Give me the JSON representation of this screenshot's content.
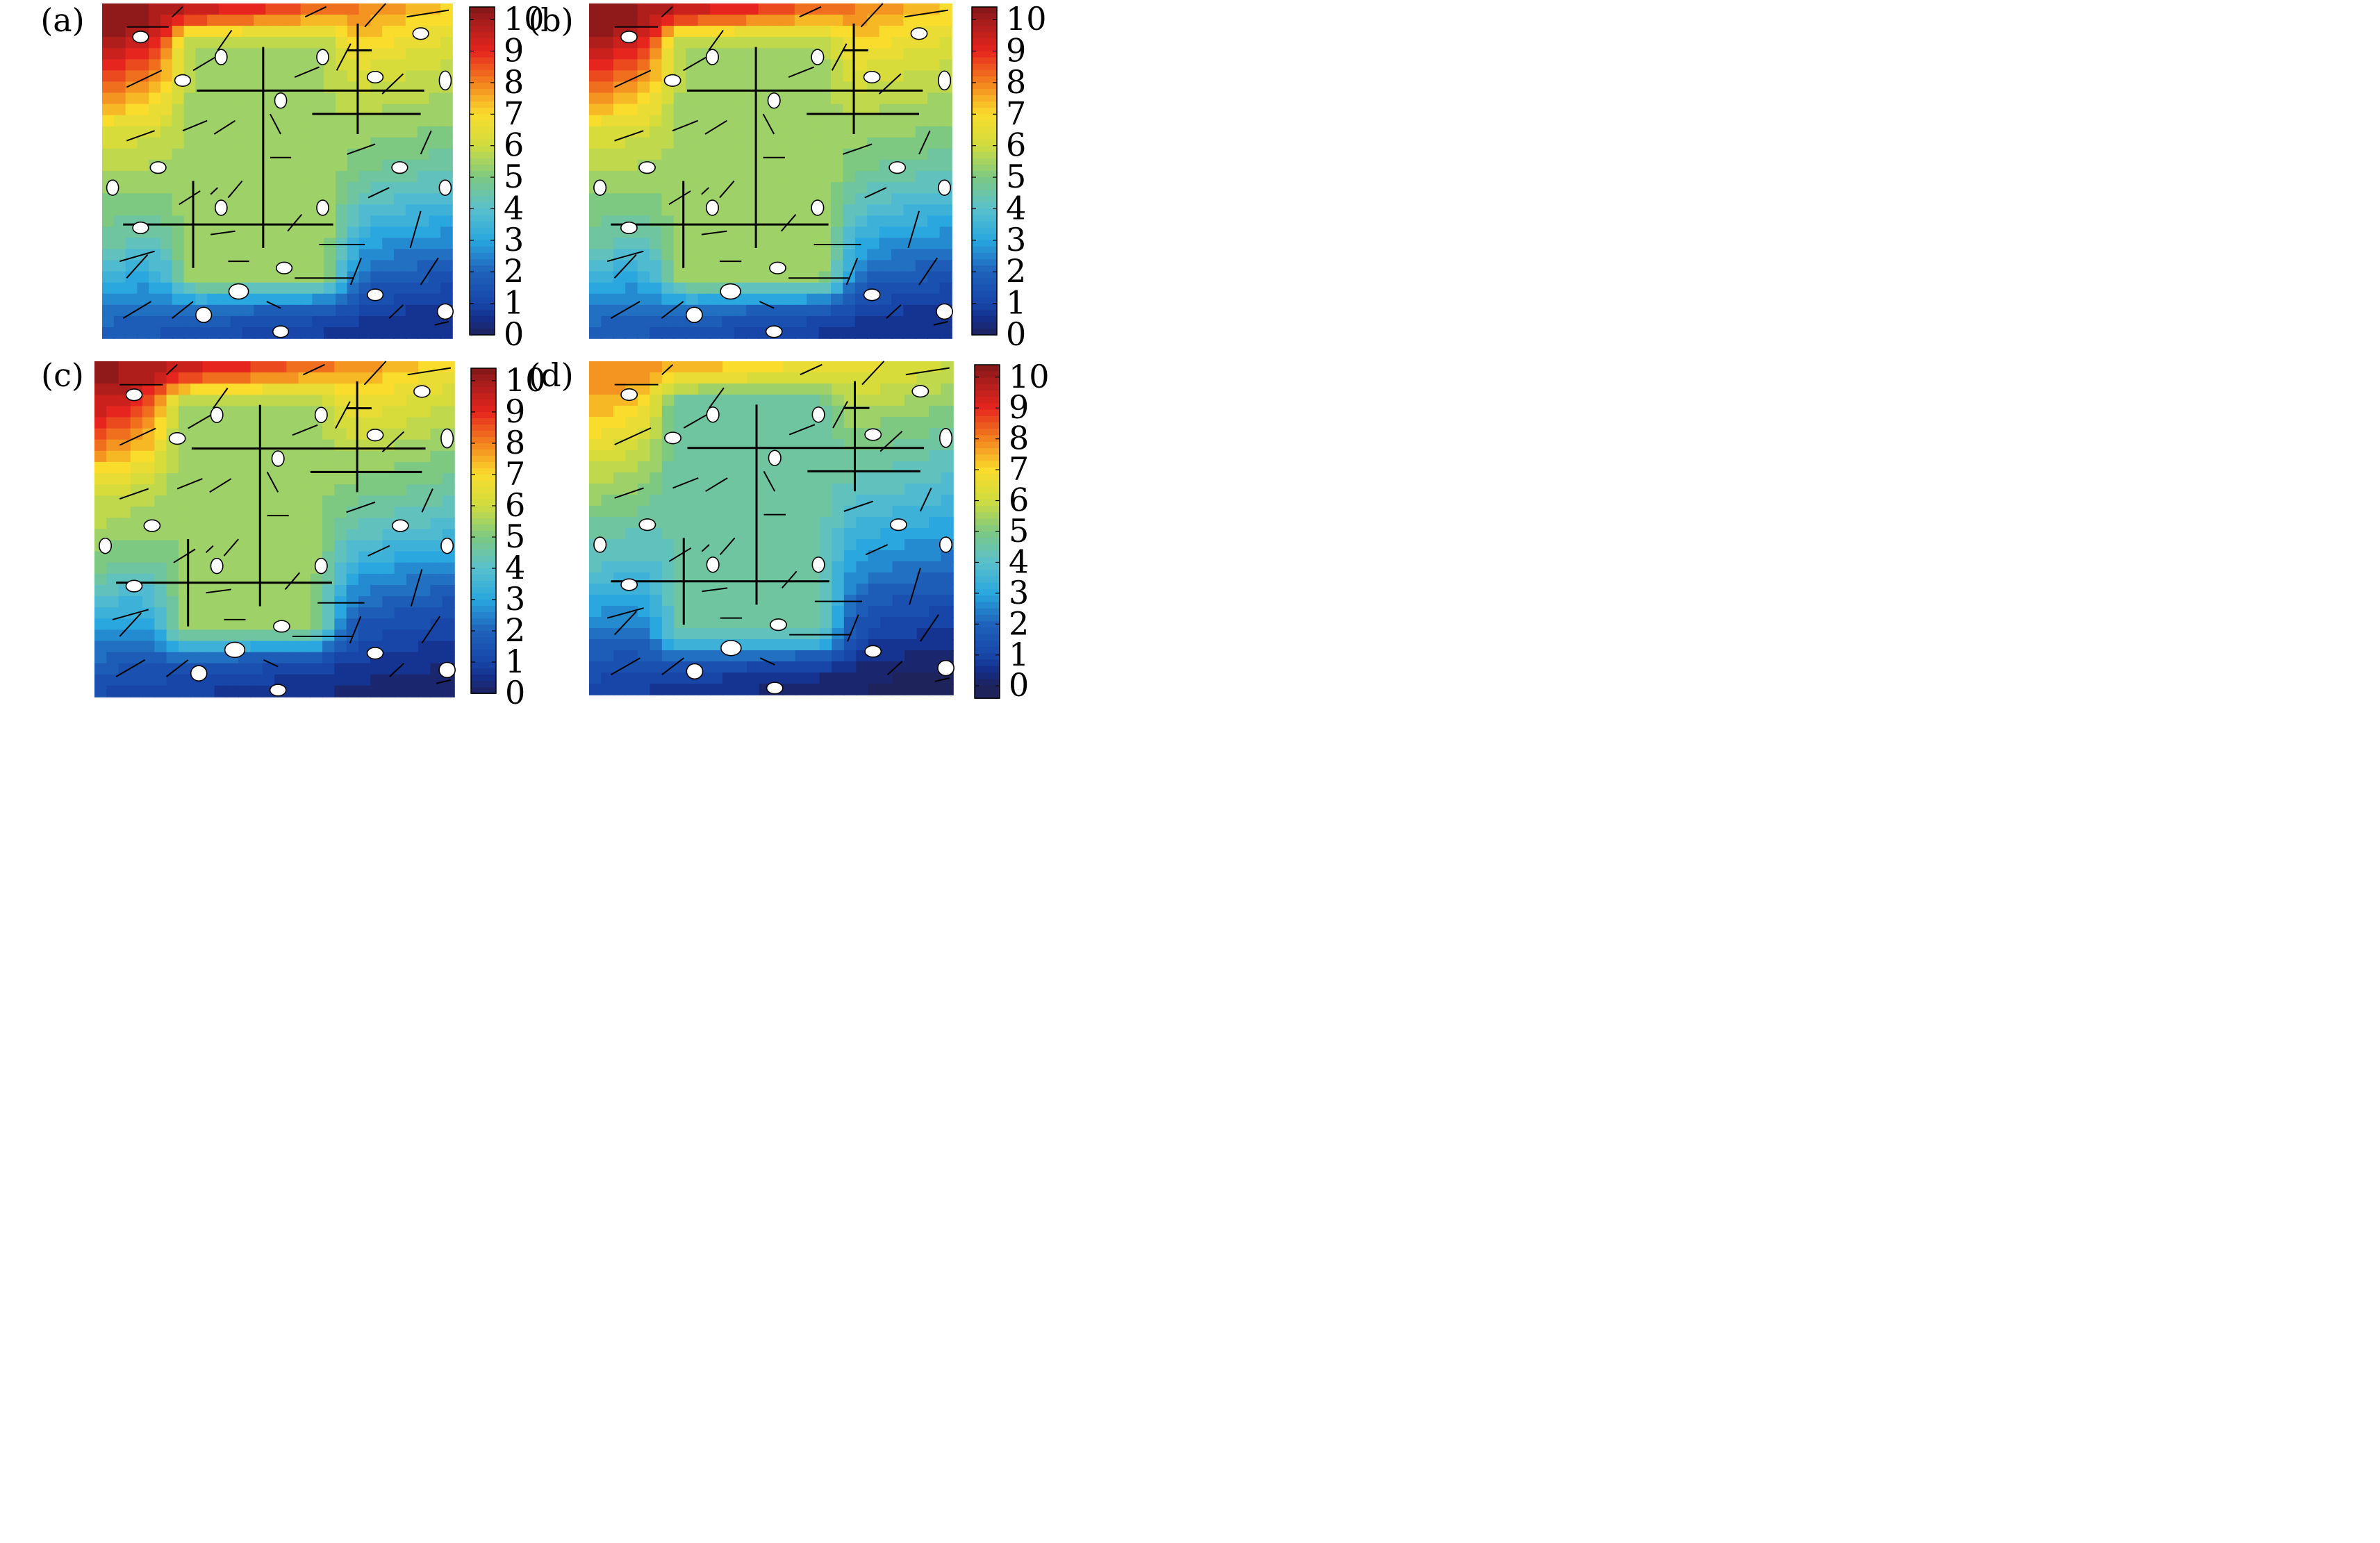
{
  "chart_data": [
    {
      "type": "heatmap",
      "panel": "(a)",
      "colorbar": {
        "min": 0,
        "max": 10.4,
        "ticks": [
          "0",
          "1",
          "2",
          "3",
          "4",
          "5",
          "6",
          "7",
          "8",
          "9",
          "10"
        ]
      },
      "field_levels_top_to_bottom": {
        "left": [
          10.4,
          9.2,
          7.8,
          6.2,
          5.6,
          5.0,
          4.4,
          3.0,
          2.0,
          1.4
        ],
        "right": [
          7.8,
          6.8,
          6.0,
          5.6,
          5.1,
          4.5,
          3.5,
          2.5,
          1.4,
          0.4
        ]
      },
      "interior_plateau": {
        "level": 5.5,
        "left_edge": 0.27,
        "right_edge": 0.62,
        "top": 0.14,
        "bottom": 0.8
      }
    },
    {
      "type": "heatmap",
      "panel": "(b)",
      "colorbar": {
        "min": 0,
        "max": 10.4,
        "ticks": [
          "0",
          "1",
          "2",
          "3",
          "4",
          "5",
          "6",
          "7",
          "8",
          "9",
          "10"
        ]
      },
      "field_levels_top_to_bottom": {
        "left": [
          10.4,
          9.2,
          7.8,
          6.2,
          5.6,
          5.0,
          4.4,
          3.0,
          2.0,
          1.4
        ],
        "right": [
          7.8,
          6.8,
          6.0,
          5.6,
          5.1,
          4.5,
          3.5,
          2.5,
          1.4,
          0.4
        ]
      },
      "interior_plateau": {
        "level": 5.5,
        "left_edge": 0.27,
        "right_edge": 0.63,
        "top": 0.14,
        "bottom": 0.8
      }
    },
    {
      "type": "heatmap",
      "panel": "(c)",
      "colorbar": {
        "min": 0,
        "max": 10.4,
        "ticks": [
          "0",
          "1",
          "2",
          "3",
          "4",
          "5",
          "6",
          "7",
          "8",
          "9",
          "10"
        ]
      },
      "field_levels_top_to_bottom": {
        "left": [
          10.2,
          9.0,
          7.6,
          6.0,
          5.5,
          4.8,
          3.6,
          2.4,
          1.4,
          0.8
        ],
        "right": [
          7.6,
          6.5,
          5.8,
          5.2,
          4.6,
          3.8,
          2.6,
          1.6,
          0.8,
          0.2
        ]
      },
      "interior_plateau": {
        "level": 5.3,
        "left_edge": 0.26,
        "right_edge": 0.6,
        "top": 0.15,
        "bottom": 0.78
      }
    },
    {
      "type": "heatmap",
      "panel": "(d)",
      "colorbar": {
        "min": -0.4,
        "max": 10.4,
        "ticks": [
          "0",
          "1",
          "2",
          "3",
          "4",
          "5",
          "6",
          "7",
          "8",
          "9",
          "10"
        ]
      },
      "field_levels_top_to_bottom": {
        "left": [
          8.0,
          7.2,
          6.2,
          5.4,
          4.6,
          4.0,
          3.0,
          2.0,
          1.2,
          0.6
        ],
        "right": [
          6.4,
          5.8,
          5.0,
          4.4,
          3.8,
          3.0,
          2.2,
          1.4,
          0.6,
          -0.2
        ]
      },
      "interior_plateau": {
        "level": 4.5,
        "left_edge": 0.26,
        "right_edge": 0.62,
        "top": 0.14,
        "bottom": 0.8
      }
    }
  ],
  "panels": [
    {
      "label": "(a)"
    },
    {
      "label": "(b)"
    },
    {
      "label": "(c)"
    },
    {
      "label": "(d)"
    }
  ]
}
